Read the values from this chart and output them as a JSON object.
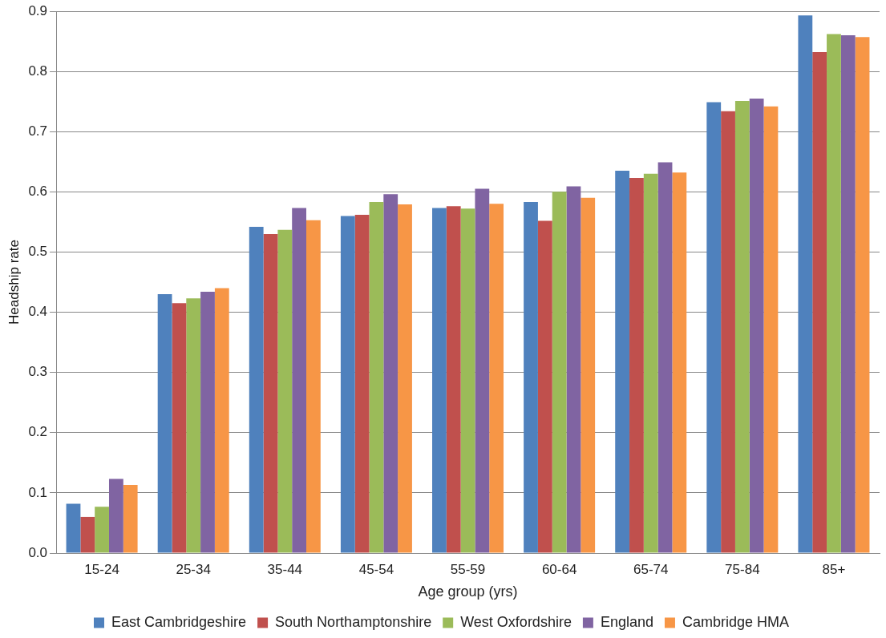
{
  "chart_data": {
    "type": "bar",
    "xlabel": "Age group (yrs)",
    "ylabel": "Headship rate",
    "categories": [
      "15-24",
      "25-34",
      "35-44",
      "45-54",
      "55-59",
      "60-64",
      "65-74",
      "75-84",
      "85+"
    ],
    "series": [
      {
        "name": "East Cambridgeshire",
        "color": "#4f81bd",
        "values": [
          0.082,
          0.43,
          0.542,
          0.56,
          0.573,
          0.583,
          0.635,
          0.749,
          0.893
        ]
      },
      {
        "name": "South Northamptonshire",
        "color": "#c0504d",
        "values": [
          0.06,
          0.415,
          0.53,
          0.562,
          0.576,
          0.552,
          0.623,
          0.734,
          0.832
        ]
      },
      {
        "name": "West Oxfordshire",
        "color": "#9bbb59",
        "values": [
          0.077,
          0.423,
          0.537,
          0.583,
          0.572,
          0.6,
          0.63,
          0.751,
          0.862
        ]
      },
      {
        "name": "England",
        "color": "#8064a2",
        "values": [
          0.123,
          0.434,
          0.573,
          0.596,
          0.605,
          0.609,
          0.649,
          0.755,
          0.86
        ]
      },
      {
        "name": "Cambridge HMA",
        "color": "#f79646",
        "values": [
          0.113,
          0.44,
          0.553,
          0.579,
          0.58,
          0.59,
          0.632,
          0.742,
          0.857
        ]
      }
    ],
    "ylim": [
      0,
      0.9
    ],
    "yticks": [
      {
        "value": 0,
        "label": "0.0"
      },
      0.1,
      0.2,
      0.3,
      0.4,
      0.5,
      0.6,
      0.7,
      0.8,
      0.9
    ],
    "grid": "y",
    "legend": "bottom"
  }
}
